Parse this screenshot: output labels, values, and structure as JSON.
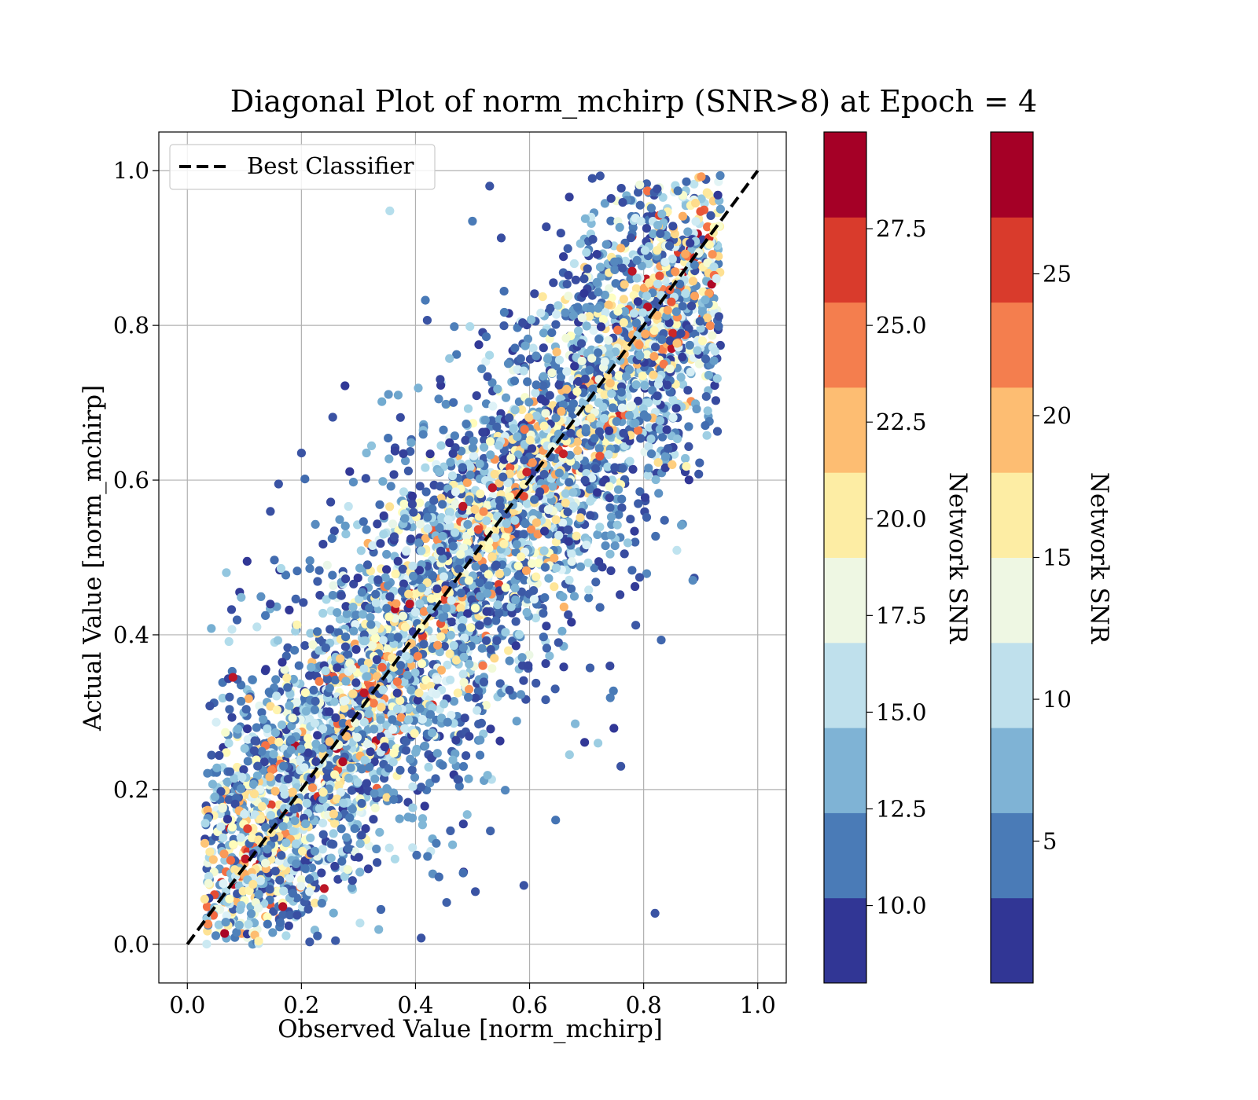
{
  "chart_data": {
    "type": "scatter",
    "title": "Diagonal Plot of norm_mchirp (SNR>8) at Epoch = 4",
    "xlabel": "Observed Value [norm_mchirp]",
    "ylabel": "Actual Value [norm_mchirp]",
    "xlim": [
      -0.05,
      1.05
    ],
    "ylim": [
      -0.05,
      1.05
    ],
    "x_ticks": [
      "0.0",
      "0.2",
      "0.4",
      "0.6",
      "0.8",
      "1.0"
    ],
    "y_ticks": [
      "0.0",
      "0.2",
      "0.4",
      "0.6",
      "0.8",
      "1.0"
    ],
    "grid": true,
    "legend": {
      "position": "top-left",
      "entries": [
        "Best Classifier"
      ]
    },
    "diagonal_line": {
      "label": "Best Classifier",
      "x": [
        0,
        1
      ],
      "y": [
        0,
        1
      ],
      "style": "dashed",
      "color": "#000000"
    },
    "colorbars": [
      {
        "label": "Network SNR",
        "range": [
          8,
          30
        ],
        "ticks": [
          10.0,
          12.5,
          15.0,
          17.5,
          20.0,
          22.5,
          25.0,
          27.5
        ],
        "tick_labels": [
          "10.0",
          "12.5",
          "15.0",
          "17.5",
          "20.0",
          "22.5",
          "25.0",
          "27.5"
        ]
      },
      {
        "label": "Network SNR",
        "range": [
          0,
          30
        ],
        "ticks": [
          5,
          10,
          15,
          20,
          25
        ],
        "tick_labels": [
          "5",
          "10",
          "15",
          "20",
          "25"
        ]
      }
    ],
    "colormap": [
      "#313695",
      "#4575b4",
      "#74add1",
      "#abd9e9",
      "#e0f3f8",
      "#ffffbf",
      "#fee090",
      "#fdae61",
      "#f46d43",
      "#d73027",
      "#a50026"
    ],
    "colormap_display": [
      "#313695",
      "#4a7bb7",
      "#7fb3d5",
      "#bfe0ec",
      "#eef7e3",
      "#fdeda4",
      "#fdbd72",
      "#f47e4e",
      "#d93b2c",
      "#a50026"
    ],
    "point_sample": [
      {
        "x": 0.08,
        "y": 0.345,
        "snr": 29
      },
      {
        "x": 0.82,
        "y": 0.04,
        "snr": 9
      },
      {
        "x": 0.76,
        "y": 0.23,
        "snr": 9
      },
      {
        "x": 0.355,
        "y": 0.948,
        "snr": 15
      },
      {
        "x": 0.53,
        "y": 0.98,
        "snr": 9
      },
      {
        "x": 0.71,
        "y": 0.99,
        "snr": 9
      },
      {
        "x": 0.59,
        "y": 0.076,
        "snr": 9
      },
      {
        "x": 0.505,
        "y": 0.068,
        "snr": 9
      },
      {
        "x": 0.41,
        "y": 0.008,
        "snr": 9
      },
      {
        "x": 0.125,
        "y": 0.004,
        "snr": 20
      },
      {
        "x": 0.24,
        "y": 0.072,
        "snr": 29
      },
      {
        "x": 0.16,
        "y": 0.595,
        "snr": 9
      },
      {
        "x": 0.2,
        "y": 0.635,
        "snr": 9
      },
      {
        "x": 0.78,
        "y": 0.87,
        "snr": 29
      },
      {
        "x": 0.535,
        "y": 0.59,
        "snr": 29
      },
      {
        "x": 0.85,
        "y": 0.62,
        "snr": 22
      },
      {
        "x": 0.72,
        "y": 0.26,
        "snr": 14
      },
      {
        "x": 0.67,
        "y": 0.245,
        "snr": 14
      },
      {
        "x": 0.68,
        "y": 0.285,
        "snr": 13
      },
      {
        "x": 0.31,
        "y": 0.325,
        "snr": 29
      },
      {
        "x": 0.39,
        "y": 0.44,
        "snr": 29
      }
    ]
  }
}
